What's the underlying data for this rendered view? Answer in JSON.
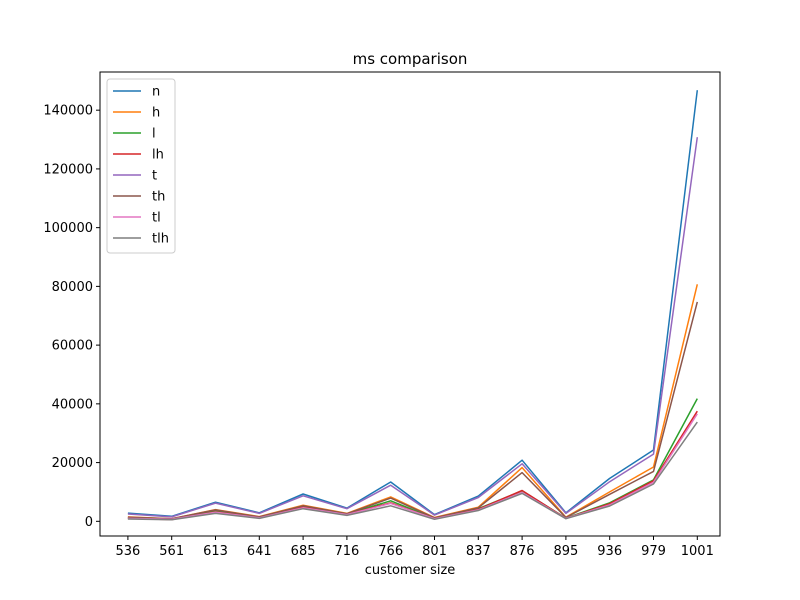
{
  "chart_data": {
    "type": "line",
    "title": "ms comparison",
    "xlabel": "customer size",
    "ylabel": "",
    "categories": [
      "536",
      "561",
      "613",
      "641",
      "685",
      "716",
      "766",
      "801",
      "837",
      "876",
      "895",
      "936",
      "979",
      "1001"
    ],
    "ylim": [
      -5000,
      153000
    ],
    "yticks": [
      0,
      20000,
      40000,
      60000,
      80000,
      100000,
      120000,
      140000
    ],
    "ytick_labels": [
      "0",
      "20000",
      "40000",
      "60000",
      "80000",
      "100000",
      "120000",
      "140000"
    ],
    "grid": false,
    "legend_position": "top-left",
    "series": [
      {
        "name": "n",
        "color": "#1f77b4",
        "values": [
          2800,
          1700,
          6500,
          2900,
          9300,
          4500,
          13400,
          2300,
          8600,
          20800,
          2900,
          14600,
          24300,
          146800
        ]
      },
      {
        "name": "h",
        "color": "#ff7f0e",
        "values": [
          1500,
          900,
          4000,
          1600,
          5500,
          2700,
          8300,
          1300,
          4800,
          18300,
          1400,
          10000,
          18500,
          80700
        ]
      },
      {
        "name": "l",
        "color": "#2ca02c",
        "values": [
          1100,
          700,
          3500,
          1300,
          5000,
          2500,
          7000,
          1000,
          4300,
          10400,
          1100,
          6300,
          14100,
          41800
        ]
      },
      {
        "name": "lh",
        "color": "#d62728",
        "values": [
          1000,
          600,
          3200,
          1200,
          4800,
          2400,
          6300,
          900,
          4100,
          10500,
          1000,
          6000,
          13800,
          37500
        ]
      },
      {
        "name": "t",
        "color": "#9467bd",
        "values": [
          2500,
          1500,
          6200,
          2700,
          8700,
          4300,
          12300,
          2100,
          8100,
          19600,
          2700,
          13500,
          22900,
          130800
        ]
      },
      {
        "name": "th",
        "color": "#8c564b",
        "values": [
          1400,
          900,
          3900,
          1500,
          5300,
          2600,
          7900,
          1200,
          4600,
          16600,
          1300,
          9200,
          17000,
          74700
        ]
      },
      {
        "name": "tl",
        "color": "#e377c2",
        "values": [
          1000,
          700,
          3100,
          1200,
          4600,
          2300,
          6100,
          900,
          3900,
          9800,
          1000,
          5600,
          13300,
          36600
        ]
      },
      {
        "name": "tlh",
        "color": "#7f7f7f",
        "values": [
          800,
          500,
          2700,
          1000,
          4300,
          2000,
          5300,
          700,
          3700,
          9500,
          900,
          5200,
          12700,
          33800
        ]
      }
    ]
  }
}
